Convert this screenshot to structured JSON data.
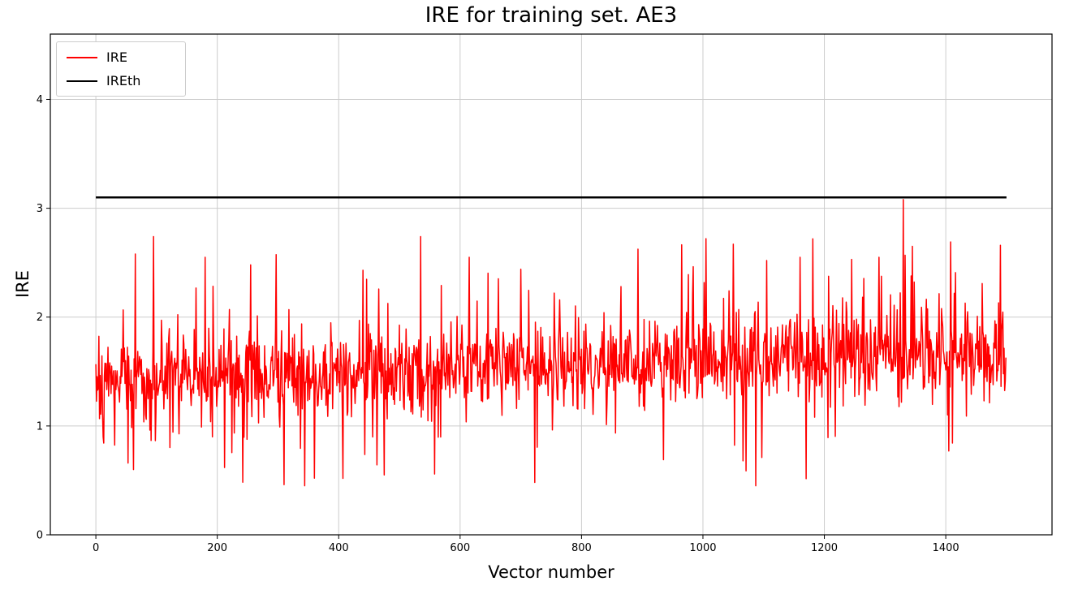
{
  "figure": {
    "background": "#ffffff"
  },
  "axes": {
    "frame_color": "#000000",
    "grid_color": "#cccccc",
    "tick_color": "#000000",
    "tick_label_fontsize": 13
  },
  "chart_data": {
    "type": "line",
    "title": "IRE for training set. AE3",
    "xlabel": "Vector number",
    "ylabel": "IRE",
    "xlim": [
      -75,
      1575
    ],
    "ylim": [
      0,
      4.6
    ],
    "xticks": [
      0,
      200,
      400,
      600,
      800,
      1000,
      1200,
      1400
    ],
    "yticks": [
      0,
      1,
      2,
      3,
      4
    ],
    "grid": true,
    "legend": {
      "position": "upper-left",
      "entries": [
        {
          "label": "IRE",
          "color": "#ff0000"
        },
        {
          "label": "IREth",
          "color": "#000000"
        }
      ]
    },
    "threshold": {
      "name": "IREth",
      "value": 3.1,
      "x_start": 0,
      "x_end": 1500,
      "color": "#000000",
      "line_width": 2.5
    },
    "series": [
      {
        "name": "IRE",
        "color": "#ff0000",
        "line_width": 1.5,
        "n_points": 1500,
        "generator": {
          "seed": 42,
          "base_start": 1.42,
          "base_end": 1.68,
          "noise_amplitude": 0.55,
          "spike_probability": 0.1,
          "spike_min": 0.25,
          "spike_max": 0.85,
          "up_bias_start": 0.35,
          "up_bias_end": 0.75,
          "value_min": 0.45,
          "value_max": 2.75
        },
        "notable_points": [
          {
            "x": 65,
            "y": 2.58
          },
          {
            "x": 95,
            "y": 2.74
          },
          {
            "x": 180,
            "y": 2.55
          },
          {
            "x": 255,
            "y": 2.48
          },
          {
            "x": 310,
            "y": 0.46
          },
          {
            "x": 360,
            "y": 0.52
          },
          {
            "x": 440,
            "y": 2.43
          },
          {
            "x": 475,
            "y": 0.55
          },
          {
            "x": 535,
            "y": 2.74
          },
          {
            "x": 615,
            "y": 2.55
          },
          {
            "x": 700,
            "y": 2.44
          },
          {
            "x": 865,
            "y": 2.28
          },
          {
            "x": 1005,
            "y": 2.72
          },
          {
            "x": 1050,
            "y": 2.67
          },
          {
            "x": 1105,
            "y": 2.52
          },
          {
            "x": 1160,
            "y": 2.55
          },
          {
            "x": 1245,
            "y": 2.53
          },
          {
            "x": 1290,
            "y": 2.55
          },
          {
            "x": 1330,
            "y": 3.08
          },
          {
            "x": 1345,
            "y": 2.65
          },
          {
            "x": 1405,
            "y": 0.77
          },
          {
            "x": 1490,
            "y": 2.66
          }
        ],
        "summary": "Noisy series fluctuating mostly between 1.0 and 2.2 (mean ~1.5) with a slight upward trend; deepest dips ~0.45-0.8 between x~250-500; single peak ~3.08 at x~1330 just touching the threshold line."
      },
      {
        "name": "IREth",
        "type": "hline",
        "color": "#000000",
        "value": 3.1
      }
    ]
  }
}
